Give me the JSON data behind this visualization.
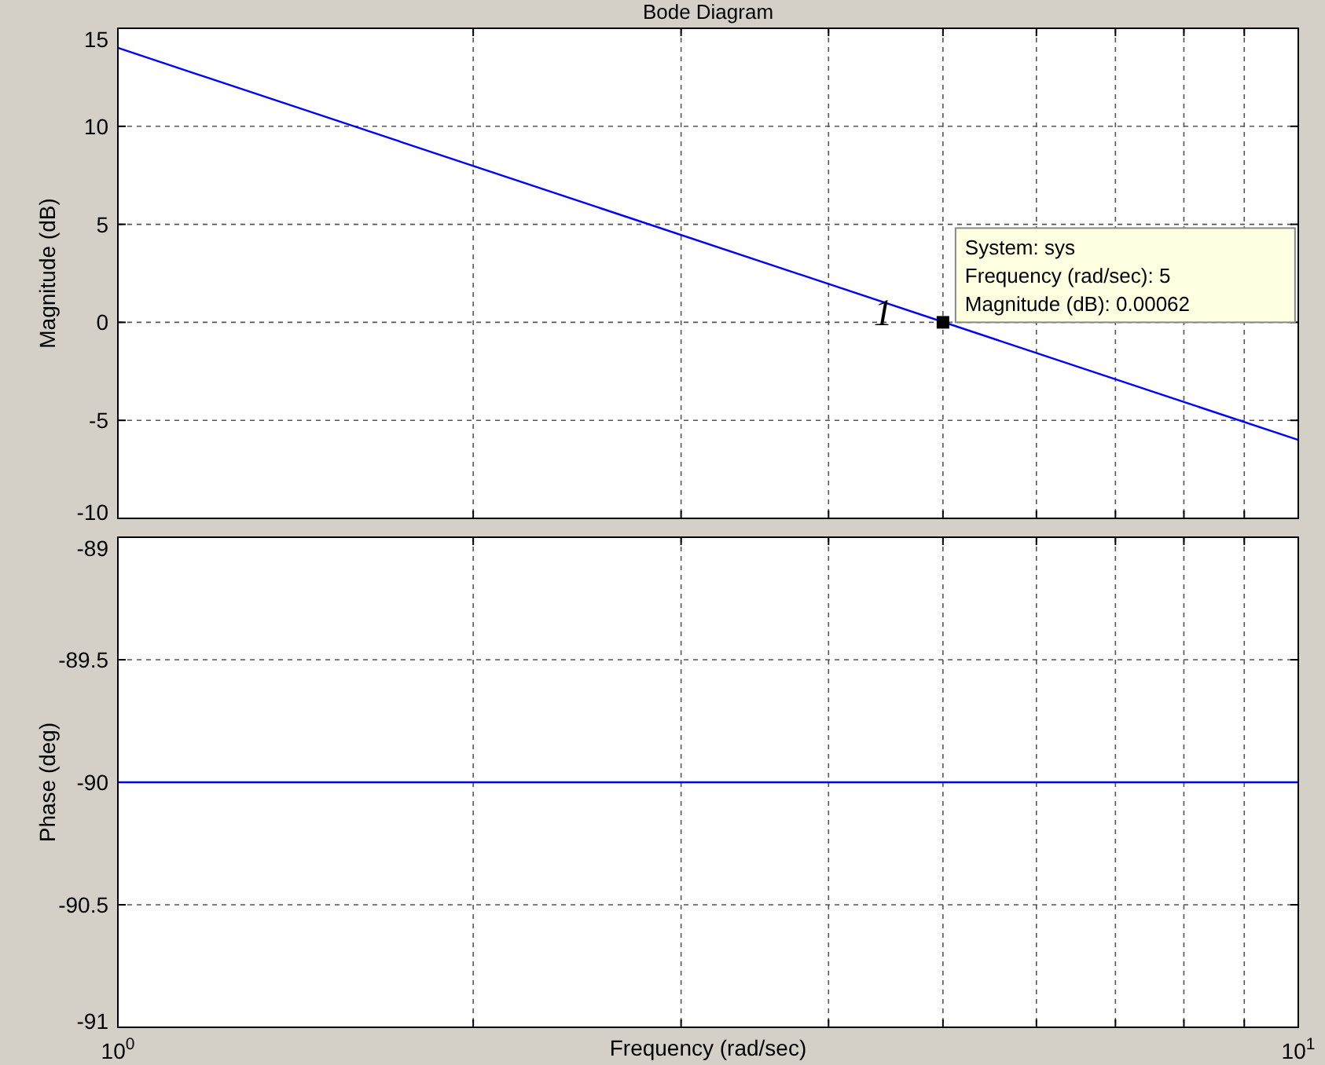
{
  "chart_data": [
    {
      "type": "line",
      "title": "Bode Diagram",
      "ylabel": "Magnitude (dB)",
      "log": "x",
      "grid": true,
      "tick_labels": "y",
      "xlim": [
        1,
        10
      ],
      "xticks": [
        {
          "value": 1,
          "label": null
        },
        {
          "value": 2,
          "label": null
        },
        {
          "value": 3,
          "label": null
        },
        {
          "value": 4,
          "label": null
        },
        {
          "value": 5,
          "label": null
        },
        {
          "value": 6,
          "label": null
        },
        {
          "value": 7,
          "label": null
        },
        {
          "value": 8,
          "label": null
        },
        {
          "value": 9,
          "label": null
        },
        {
          "value": 10,
          "label": null
        }
      ],
      "ylim": [
        -10,
        15
      ],
      "yticks": [
        -10,
        -5,
        0,
        5,
        10,
        15
      ],
      "series": [
        {
          "color": "#0000ff",
          "x": [
            1,
            10
          ],
          "values": [
            14,
            -6
          ],
          "marker": "none"
        },
        {
          "type": "scatter",
          "color": "#000000",
          "x": [
            5
          ],
          "values": [
            0.00062
          ],
          "marker": "square"
        }
      ],
      "annotations": [
        {
          "text": "System: sys\nFrequency (rad/sec): 5\nMagnitude (dB): 0.00062",
          "x": 5,
          "y": 0.00062
        },
        {
          "text": "1",
          "x": 5,
          "y": 0.00062
        }
      ]
    },
    {
      "type": "line",
      "xlabel": "Frequency  (rad/sec)",
      "ylabel": "Phase (deg)",
      "log": "x",
      "grid": true,
      "xlim": [
        1,
        10
      ],
      "xticks": [
        {
          "value": 1,
          "label": "10$^{0}$"
        },
        {
          "value": 2,
          "label": null
        },
        {
          "value": 3,
          "label": null
        },
        {
          "value": 4,
          "label": null
        },
        {
          "value": 5,
          "label": null
        },
        {
          "value": 6,
          "label": null
        },
        {
          "value": 7,
          "label": null
        },
        {
          "value": 8,
          "label": null
        },
        {
          "value": 9,
          "label": null
        },
        {
          "value": 10,
          "label": "10$^{1}$"
        }
      ],
      "ylim": [
        -91,
        -89
      ],
      "yticks": [
        -91,
        -90.5,
        -90,
        -89.5,
        -89
      ],
      "series": [
        {
          "color": "#0000ff",
          "x": [
            1,
            10
          ],
          "values": [
            -90,
            -90
          ],
          "marker": "none"
        }
      ]
    }
  ]
}
